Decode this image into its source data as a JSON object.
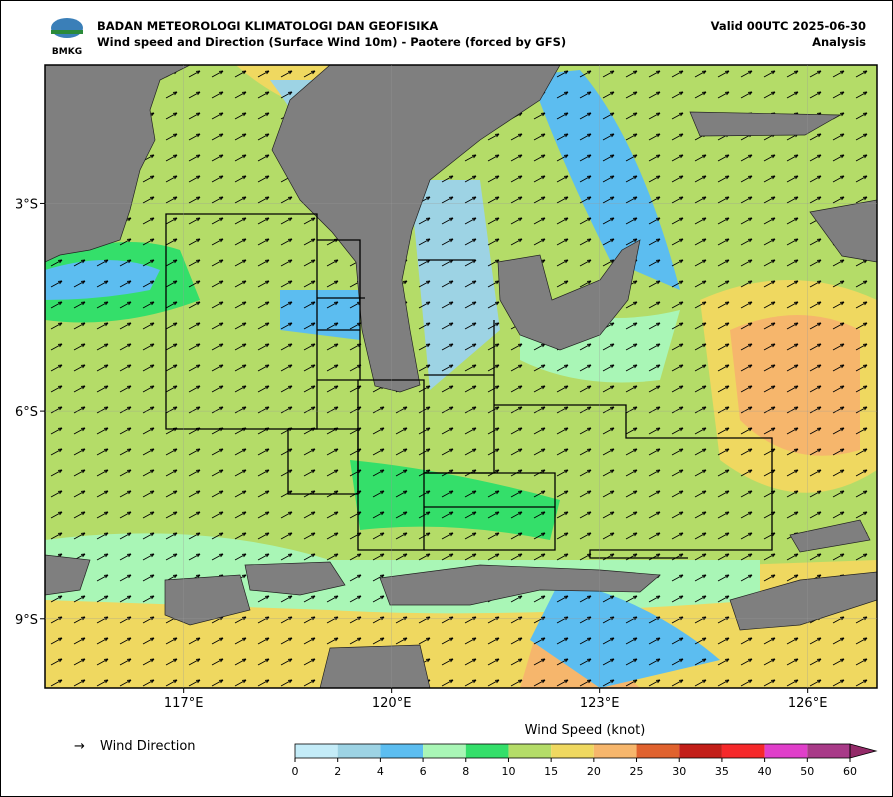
{
  "header": {
    "logo": "BMKG",
    "title": "BADAN METEOROLOGI KLIMATOLOGI DAN GEOFISIKA",
    "subtitle": "Wind speed and Direction (Surface Wind 10m) - Paotere (forced by GFS)",
    "valid": "Valid 00UTC 2025-06-30",
    "analysis": "Analysis"
  },
  "map": {
    "xlim": [
      115,
      127
    ],
    "ylim": [
      -10,
      -1
    ],
    "xticks": [
      {
        "value": 117,
        "label": "117°E"
      },
      {
        "value": 120,
        "label": "120°E"
      },
      {
        "value": 123,
        "label": "123°E"
      },
      {
        "value": 126,
        "label": "126°E"
      }
    ],
    "yticks": [
      {
        "value": -3,
        "label": "3°S"
      },
      {
        "value": -6,
        "label": "6°S"
      },
      {
        "value": -9,
        "label": "9°S"
      }
    ]
  },
  "legend": {
    "wind_direction": "Wind Direction"
  },
  "colorbar": {
    "title": "Wind Speed (knot)",
    "ticks": [
      0,
      2,
      4,
      6,
      8,
      10,
      15,
      20,
      25,
      30,
      35,
      40,
      50,
      60
    ],
    "colors": [
      "#c4ecf8",
      "#9dd3e4",
      "#5cbdf0",
      "#a9f6b6",
      "#34df6a",
      "#b4dc68",
      "#efd860",
      "#f6b66c",
      "#e0622e",
      "#c21e18",
      "#f5282a",
      "#e03fca",
      "#a83a88"
    ],
    "extend_color": "#932a68"
  }
}
